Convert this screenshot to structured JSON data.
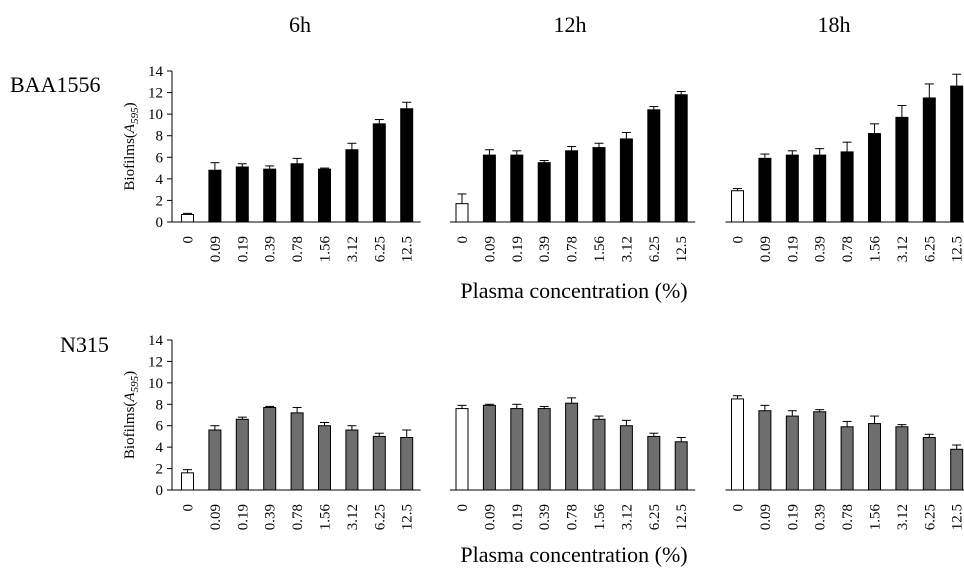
{
  "time_labels": [
    "6h",
    "12h",
    "18h"
  ],
  "chart_data": [
    {
      "type": "bar",
      "title": "BAA1556",
      "ylabel": "Biofilms(A595)",
      "ylabel_parts": {
        "main": "Biofilms(",
        "italic": "A",
        "sub": "595",
        "close": ")"
      },
      "xlabel": "Plasma concentration (%)",
      "ylim": [
        0,
        14
      ],
      "yticks": [
        "0",
        "2",
        "4",
        "6",
        "8",
        "10",
        "12",
        "14"
      ],
      "categories": [
        "0",
        "0.09",
        "0.19",
        "0.39",
        "0.78",
        "1.56",
        "3.12",
        "6.25",
        "12.5"
      ],
      "control_color": "#ffffff",
      "bar_color": "#000000",
      "groups": [
        {
          "name": "6h",
          "values": [
            0.7,
            4.8,
            5.1,
            4.9,
            5.4,
            4.9,
            6.7,
            9.1,
            10.5
          ],
          "errors": [
            0.1,
            0.7,
            0.3,
            0.3,
            0.5,
            0.1,
            0.6,
            0.4,
            0.6
          ]
        },
        {
          "name": "12h",
          "values": [
            1.7,
            6.2,
            6.2,
            5.5,
            6.6,
            6.9,
            7.7,
            10.4,
            11.8
          ],
          "errors": [
            0.9,
            0.5,
            0.4,
            0.2,
            0.4,
            0.4,
            0.6,
            0.3,
            0.3
          ]
        },
        {
          "name": "18h",
          "values": [
            2.9,
            5.9,
            6.2,
            6.2,
            6.5,
            8.2,
            9.7,
            11.5,
            12.6
          ],
          "errors": [
            0.2,
            0.4,
            0.4,
            0.6,
            0.9,
            0.9,
            1.1,
            1.3,
            1.1
          ]
        }
      ]
    },
    {
      "type": "bar",
      "title": "N315",
      "ylabel": "Biofilms(A595)",
      "ylabel_parts": {
        "main": "Biofilms(",
        "italic": "A",
        "sub": "595",
        "close": ")"
      },
      "xlabel": "Plasma concentration (%)",
      "ylim": [
        0,
        14
      ],
      "yticks": [
        "0",
        "2",
        "4",
        "6",
        "8",
        "10",
        "12",
        "14"
      ],
      "categories": [
        "0",
        "0.09",
        "0.19",
        "0.39",
        "0.78",
        "1.56",
        "3.12",
        "6.25",
        "12.5"
      ],
      "control_color": "#ffffff",
      "bar_color": "#6e6e6e",
      "groups": [
        {
          "name": "6h",
          "values": [
            1.6,
            5.6,
            6.6,
            7.7,
            7.2,
            6.0,
            5.6,
            5.0,
            4.9
          ],
          "errors": [
            0.3,
            0.4,
            0.2,
            0.1,
            0.5,
            0.3,
            0.4,
            0.3,
            0.7
          ]
        },
        {
          "name": "12h",
          "values": [
            7.6,
            7.9,
            7.6,
            7.6,
            8.1,
            6.6,
            6.0,
            5.0,
            4.5
          ],
          "errors": [
            0.3,
            0.1,
            0.4,
            0.2,
            0.5,
            0.3,
            0.5,
            0.3,
            0.4
          ]
        },
        {
          "name": "18h",
          "values": [
            8.5,
            7.4,
            6.9,
            7.3,
            5.9,
            6.2,
            5.9,
            4.9,
            3.8
          ],
          "errors": [
            0.3,
            0.5,
            0.5,
            0.2,
            0.5,
            0.7,
            0.2,
            0.3,
            0.4
          ]
        }
      ]
    }
  ]
}
